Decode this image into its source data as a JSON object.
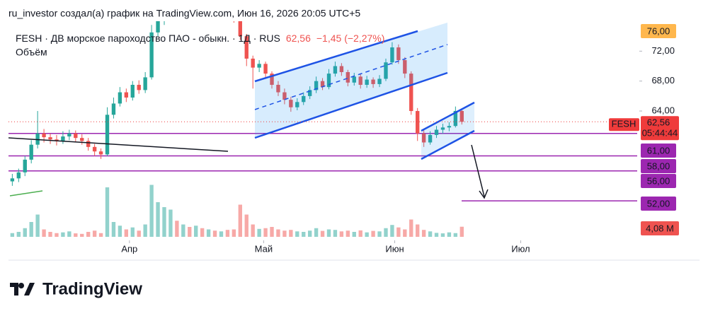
{
  "header": {
    "author_line": "ru_investor создал(а) график на TradingView.com, Июн 16, 2026 20:05 UTC+5",
    "logo": "TradingView"
  },
  "chart_data": {
    "type": "candlestick",
    "symbol_line": "FESH · ДВ морское пароходство ПАО - обыкн. · 1Д · RUS",
    "last_price_text": "62,56",
    "change_text": "−1,45 (−2,27%)",
    "volume_title": "Объём",
    "x": [
      0,
      1,
      2,
      3,
      4,
      5,
      6,
      7,
      8,
      9,
      10,
      11,
      12,
      13,
      14,
      15,
      16,
      17,
      18,
      19,
      20,
      21,
      22,
      23,
      24,
      25,
      26,
      27,
      28,
      29,
      30,
      31,
      32,
      33,
      34,
      35,
      36,
      37,
      38,
      39,
      40,
      41,
      42,
      43,
      44,
      45,
      46,
      47,
      48,
      49,
      50,
      51,
      52,
      53,
      54,
      55,
      56,
      57,
      58,
      59,
      60,
      61,
      62,
      63,
      64,
      65,
      66,
      67,
      68,
      69,
      70,
      71
    ],
    "open": [
      54.6,
      55.0,
      55.8,
      57.5,
      59.5,
      61.0,
      60.5,
      60.2,
      60.0,
      60.6,
      61.0,
      60.4,
      60.0,
      59.2,
      58.6,
      58.2,
      63.5,
      65.0,
      66.5,
      65.8,
      67.5,
      66.8,
      68.5,
      74.5,
      76.0,
      77.0,
      78.5,
      77.5,
      78.0,
      77.2,
      78.3,
      77.8,
      78.5,
      77.6,
      78.2,
      77.0,
      76.5,
      74.0,
      71.0,
      69.8,
      70.3,
      69.0,
      67.5,
      66.5,
      65.5,
      64.5,
      65.2,
      66.0,
      66.8,
      68.0,
      67.2,
      69.0,
      70.0,
      69.2,
      67.8,
      68.6,
      67.5,
      68.2,
      67.6,
      68.3,
      70.5,
      72.5,
      70.8,
      69.0,
      64.0,
      61.0,
      59.8,
      60.8,
      61.5,
      61.8,
      62.0,
      64.01
    ],
    "high": [
      55.6,
      56.3,
      58.0,
      60.1,
      64.0,
      61.6,
      61.0,
      60.8,
      61.3,
      61.5,
      61.4,
      60.9,
      60.4,
      59.6,
      59.0,
      64.5,
      65.8,
      67.2,
      67.0,
      68.0,
      68.1,
      69.2,
      75.5,
      77.0,
      77.8,
      79.2,
      79.0,
      78.6,
      78.5,
      78.9,
      78.8,
      79.0,
      78.9,
      78.7,
      78.5,
      77.3,
      76.8,
      74.3,
      71.4,
      70.8,
      70.6,
      69.3,
      68.0,
      67.0,
      65.9,
      65.7,
      66.5,
      67.3,
      68.6,
      68.4,
      69.6,
      70.6,
      70.4,
      69.5,
      69.1,
      68.9,
      68.7,
      68.5,
      68.8,
      71.0,
      73.2,
      72.9,
      71.2,
      69.3,
      64.4,
      61.4,
      61.3,
      62.0,
      62.3,
      62.5,
      64.6,
      64.3
    ],
    "low": [
      54.0,
      54.5,
      55.3,
      57.0,
      59.0,
      59.8,
      59.6,
      59.4,
      59.6,
      60.1,
      59.9,
      59.5,
      58.7,
      58.0,
      57.6,
      58.0,
      63.0,
      64.6,
      65.2,
      65.4,
      66.3,
      66.4,
      68.2,
      74.0,
      75.5,
      76.6,
      77.0,
      77.0,
      76.8,
      76.9,
      77.3,
      77.4,
      77.1,
      77.2,
      76.5,
      75.8,
      73.5,
      70.0,
      67.0,
      69.2,
      68.5,
      67.0,
      66.0,
      64.9,
      63.9,
      64.1,
      64.8,
      65.6,
      66.4,
      66.8,
      66.9,
      68.6,
      68.7,
      67.3,
      67.4,
      67.0,
      67.1,
      67.1,
      67.2,
      68.0,
      70.2,
      70.3,
      68.4,
      63.5,
      60.0,
      59.2,
      59.5,
      60.4,
      61.0,
      61.3,
      61.8,
      62.2
    ],
    "close": [
      55.0,
      55.8,
      57.5,
      59.5,
      61.0,
      60.5,
      60.2,
      60.0,
      60.6,
      61.0,
      60.4,
      60.0,
      59.2,
      58.6,
      58.2,
      63.5,
      65.0,
      66.5,
      65.8,
      67.5,
      66.8,
      68.5,
      74.5,
      76.0,
      77.0,
      78.5,
      77.5,
      78.0,
      77.2,
      78.3,
      77.8,
      78.5,
      77.6,
      78.2,
      77.0,
      76.5,
      74.0,
      71.0,
      69.8,
      70.3,
      69.0,
      67.5,
      66.5,
      65.5,
      64.5,
      65.2,
      66.0,
      66.8,
      68.0,
      67.2,
      69.0,
      70.0,
      69.2,
      67.8,
      68.6,
      67.5,
      68.2,
      67.6,
      68.3,
      70.5,
      72.5,
      70.8,
      69.0,
      64.0,
      61.0,
      59.8,
      60.8,
      61.5,
      61.8,
      62.0,
      64.01,
      62.56
    ],
    "volume": [
      1.5,
      2.0,
      3.5,
      6.0,
      9.0,
      3.0,
      2.0,
      1.5,
      1.8,
      2.2,
      1.4,
      1.2,
      2.0,
      2.5,
      1.5,
      20.0,
      6.0,
      4.5,
      3.0,
      3.8,
      2.5,
      5.0,
      21.0,
      14.0,
      12.0,
      11.0,
      6.5,
      5.0,
      4.0,
      4.5,
      3.5,
      3.0,
      2.5,
      2.2,
      2.8,
      3.0,
      13.0,
      9.0,
      5.0,
      3.2,
      3.5,
      4.0,
      3.0,
      2.5,
      2.8,
      2.2,
      2.0,
      2.5,
      3.5,
      2.4,
      3.0,
      2.8,
      2.2,
      2.5,
      2.0,
      2.6,
      1.8,
      2.4,
      2.2,
      3.5,
      4.8,
      3.8,
      3.0,
      7.0,
      5.0,
      2.8,
      2.2,
      1.6,
      1.4,
      1.8,
      1.5,
      4.08
    ],
    "last_volume_label": "4,08 M",
    "up_color": "#26a69a",
    "down_color": "#ef5350",
    "xlim": [
      -0.6,
      98.7
    ],
    "xticks": [
      {
        "value": 18.5,
        "label": "Апр"
      },
      {
        "value": 39.7,
        "label": "Май"
      },
      {
        "value": 60.4,
        "label": "Июн"
      },
      {
        "value": 80.3,
        "label": "Июл"
      }
    ],
    "ylim": [
      47,
      76
    ],
    "yticks": [
      {
        "value": 64,
        "label": "64,00"
      },
      {
        "value": 68,
        "label": "68,00"
      },
      {
        "value": 72,
        "label": "72,00"
      }
    ],
    "volume_ylim": [
      0,
      20
    ],
    "levels": [
      {
        "value": 76,
        "label": "76,00",
        "color": "#ffb74d"
      },
      {
        "value": 61,
        "label": "61,00",
        "color": "#9c27b0"
      },
      {
        "value": 58,
        "label": "58,00",
        "color": "#9c27b0"
      },
      {
        "value": 56,
        "label": "56,00",
        "color": "#9c27b0"
      },
      {
        "value": 52,
        "label": "52,00",
        "color": "#9c27b0"
      }
    ],
    "last_price": {
      "value": 62.56,
      "ticker": "FESH",
      "label": "62,56",
      "countdown": "05:44:44",
      "color": "#ef3b3b"
    }
  }
}
